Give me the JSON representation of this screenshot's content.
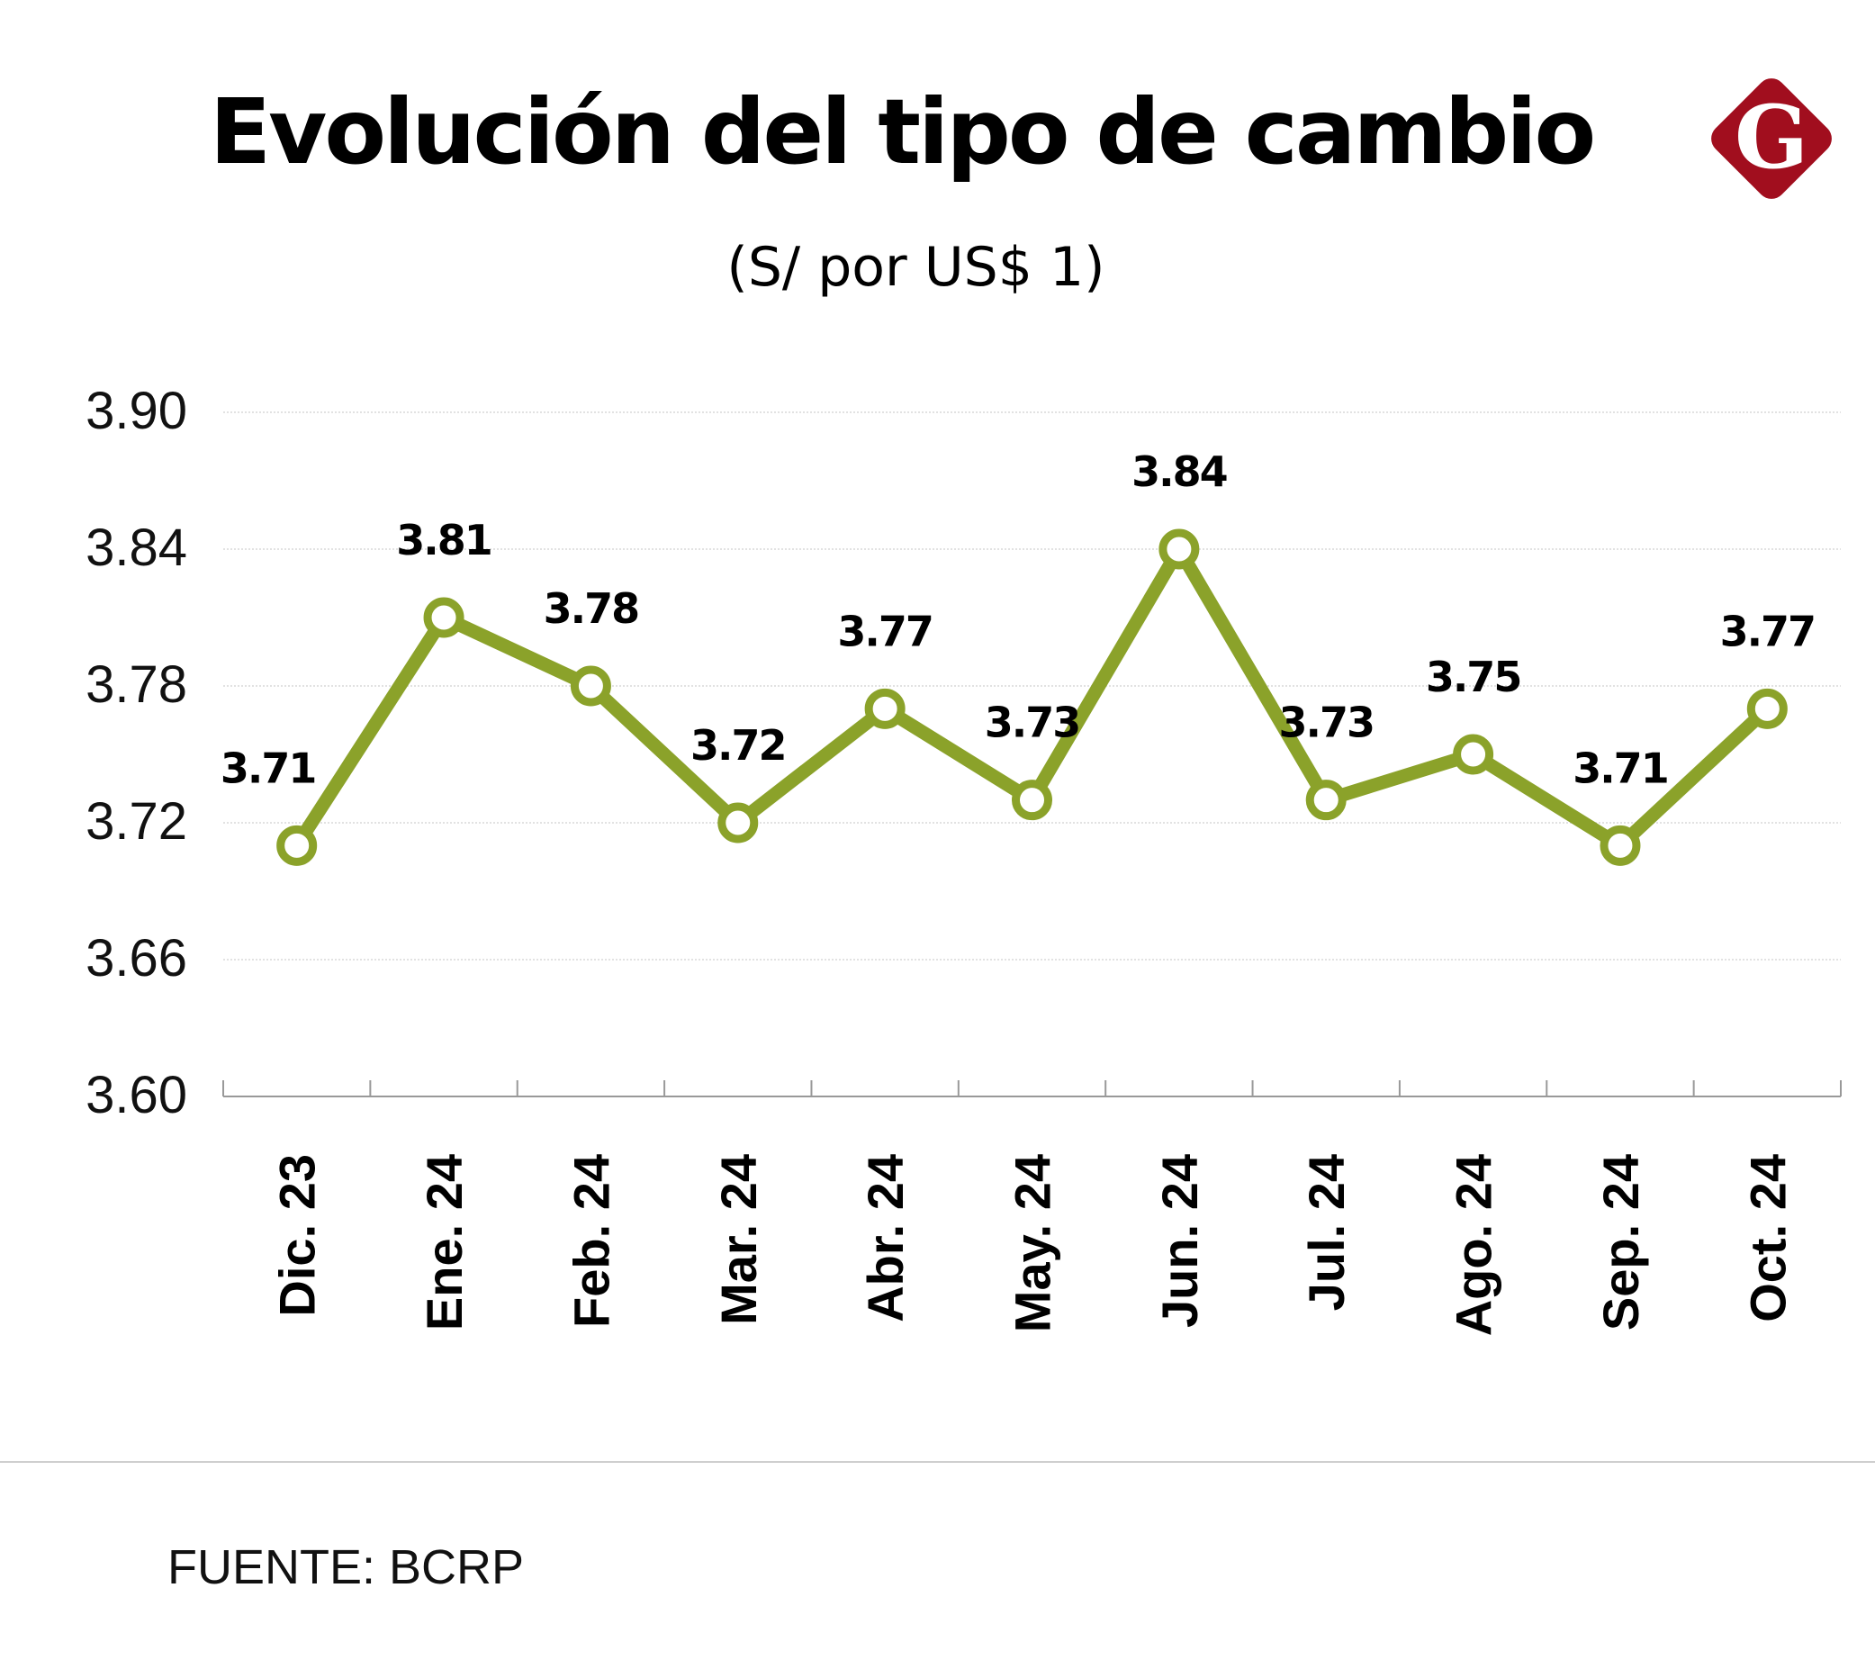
{
  "chart_data": {
    "type": "line",
    "title": "Evolución del tipo de cambio",
    "subtitle": "(S/ por US$ 1)",
    "categories": [
      "Dic. 23",
      "Ene. 24",
      "Feb. 24",
      "Mar. 24",
      "Abr. 24",
      "May. 24",
      "Jun. 24",
      "Jul. 24",
      "Ago. 24",
      "Sep. 24",
      "Oct. 24"
    ],
    "values": [
      3.71,
      3.81,
      3.78,
      3.72,
      3.77,
      3.73,
      3.84,
      3.73,
      3.75,
      3.71,
      3.77
    ],
    "data_labels": [
      "3.71",
      "3.81",
      "3.78",
      "3.72",
      "3.77",
      "3.73",
      "3.84",
      "3.73",
      "3.75",
      "3.71",
      "3.77"
    ],
    "y_ticks": [
      "3.60",
      "3.66",
      "3.72",
      "3.78",
      "3.84",
      "3.90"
    ],
    "ylim": [
      3.6,
      3.9
    ],
    "grid": true,
    "legend": "none",
    "line_color": "#8ba22a"
  },
  "source": "FUENTE: BCRP",
  "logo": {
    "letter": "G",
    "color": "#a10e1e"
  }
}
